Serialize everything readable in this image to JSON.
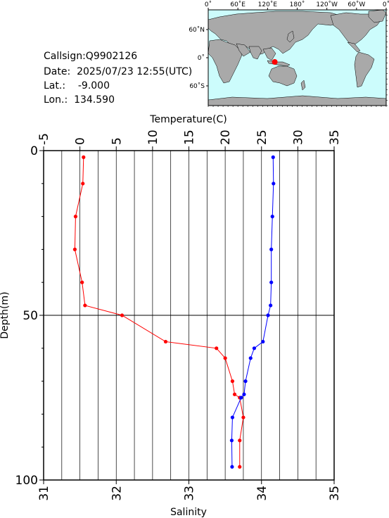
{
  "header": {
    "callsign_label": "Callsign:",
    "callsign": "Q9902126",
    "date_label": "Date:",
    "date": "2025/07/23 12:55(UTC)",
    "lat_label": "Lat.:",
    "lat": "-9.000",
    "lon_label": "Lon.:",
    "lon": "134.590"
  },
  "map": {
    "top_ticks": [
      "0˚",
      "60˚E",
      "120˚E",
      "180˚",
      "120˚W",
      "60˚W",
      "0˚"
    ],
    "left_ticks": [
      "60˚N",
      "0˚",
      "60˚S"
    ],
    "ocean_color": "#ccfcfc",
    "land_color": "#a9a9a9",
    "marker_color": "#ff0000",
    "marker": {
      "lat": -9.0,
      "lon": 134.59
    }
  },
  "chart_data": {
    "type": "line",
    "y": {
      "label": "Depth(m)",
      "range": [
        0,
        100
      ],
      "inverted": true,
      "ticks": [
        "0",
        "50",
        "100"
      ]
    },
    "x_top": {
      "label": "Temperature(C)",
      "range": [
        -5,
        35
      ],
      "ticks": [
        "-5",
        "0",
        "5",
        "10",
        "15",
        "20",
        "25",
        "30",
        "35"
      ]
    },
    "x_bottom": {
      "label": "Salinity",
      "range": [
        31,
        35
      ],
      "ticks": [
        "31",
        "32",
        "33",
        "34",
        "35"
      ]
    },
    "grid": true,
    "series": [
      {
        "axis": "bottom",
        "color": "#ff0000",
        "points": [
          [
            31.55,
            2
          ],
          [
            31.54,
            10
          ],
          [
            31.44,
            20
          ],
          [
            31.43,
            30
          ],
          [
            31.53,
            40
          ],
          [
            31.57,
            47
          ],
          [
            32.08,
            50
          ],
          [
            32.68,
            58
          ],
          [
            33.38,
            60
          ],
          [
            33.5,
            63
          ],
          [
            33.6,
            70
          ],
          [
            33.63,
            74
          ],
          [
            33.7,
            75
          ],
          [
            33.75,
            81
          ],
          [
            33.7,
            88
          ],
          [
            33.7,
            96
          ]
        ]
      },
      {
        "axis": "top",
        "color": "#0000ff",
        "points": [
          [
            26.6,
            2
          ],
          [
            26.65,
            10
          ],
          [
            26.5,
            20
          ],
          [
            26.35,
            30
          ],
          [
            26.35,
            40
          ],
          [
            26.25,
            47
          ],
          [
            25.9,
            50
          ],
          [
            25.2,
            58
          ],
          [
            24.0,
            60
          ],
          [
            23.5,
            63
          ],
          [
            22.8,
            70
          ],
          [
            22.6,
            74
          ],
          [
            22.2,
            75
          ],
          [
            21.0,
            81
          ],
          [
            20.9,
            88
          ],
          [
            20.95,
            96
          ]
        ]
      }
    ]
  }
}
